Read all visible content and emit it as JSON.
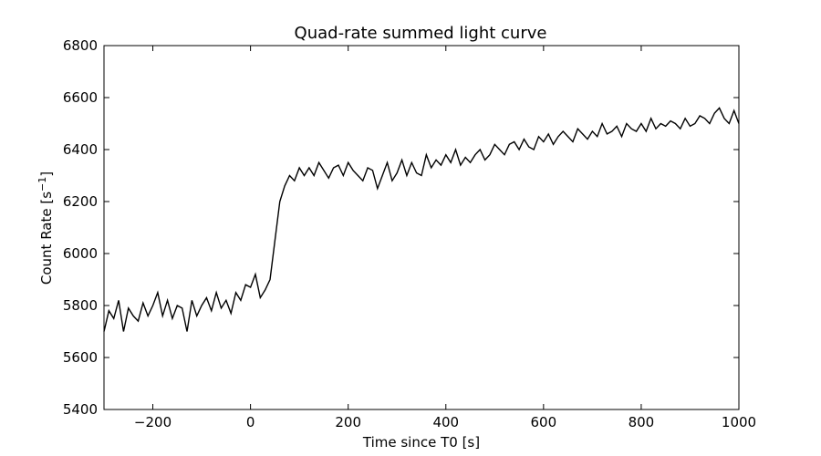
{
  "chart_data": {
    "type": "line",
    "title": "Quad-rate summed light curve",
    "xlabel": "Time since T0 [s]",
    "ylabel_main": "Count Rate [s",
    "ylabel_sup": "−1",
    "ylabel_end": "]",
    "xlim": [
      -300,
      1000
    ],
    "ylim": [
      5400,
      6800
    ],
    "xticks": [
      -200,
      0,
      200,
      400,
      600,
      800,
      1000
    ],
    "xtick_labels": [
      "−200",
      "0",
      "200",
      "400",
      "600",
      "800",
      "1000"
    ],
    "yticks": [
      5400,
      5600,
      5800,
      6000,
      6200,
      6400,
      6600,
      6800
    ],
    "ytick_labels": [
      "5400",
      "5600",
      "5800",
      "6000",
      "6200",
      "6400",
      "6600",
      "6800"
    ],
    "grid": false,
    "series": [
      {
        "color": "#000000",
        "x": [
          -300,
          -290,
          -280,
          -270,
          -260,
          -250,
          -240,
          -230,
          -220,
          -210,
          -200,
          -190,
          -180,
          -170,
          -160,
          -150,
          -140,
          -130,
          -120,
          -110,
          -100,
          -90,
          -80,
          -70,
          -60,
          -50,
          -40,
          -30,
          -20,
          -10,
          0,
          10,
          20,
          30,
          40,
          50,
          60,
          70,
          80,
          90,
          100,
          110,
          120,
          130,
          140,
          150,
          160,
          170,
          180,
          190,
          200,
          210,
          220,
          230,
          240,
          250,
          260,
          270,
          280,
          290,
          300,
          310,
          320,
          330,
          340,
          350,
          360,
          370,
          380,
          390,
          400,
          410,
          420,
          430,
          440,
          450,
          460,
          470,
          480,
          490,
          500,
          510,
          520,
          530,
          540,
          550,
          560,
          570,
          580,
          590,
          600,
          610,
          620,
          630,
          640,
          650,
          660,
          670,
          680,
          690,
          700,
          710,
          720,
          730,
          740,
          750,
          760,
          770,
          780,
          790,
          800,
          810,
          820,
          830,
          840,
          850,
          860,
          870,
          880,
          890,
          900,
          910,
          920,
          930,
          940,
          950,
          960,
          970,
          980,
          990,
          1000
        ],
        "y": [
          5700,
          5780,
          5750,
          5820,
          5700,
          5790,
          5760,
          5740,
          5810,
          5760,
          5800,
          5850,
          5760,
          5820,
          5750,
          5800,
          5790,
          5700,
          5820,
          5760,
          5800,
          5830,
          5780,
          5850,
          5790,
          5820,
          5770,
          5850,
          5820,
          5880,
          5870,
          5920,
          5830,
          5860,
          5900,
          6050,
          6200,
          6260,
          6300,
          6280,
          6330,
          6300,
          6330,
          6300,
          6350,
          6320,
          6290,
          6330,
          6340,
          6300,
          6350,
          6320,
          6300,
          6280,
          6330,
          6320,
          6250,
          6300,
          6350,
          6280,
          6310,
          6360,
          6300,
          6350,
          6310,
          6300,
          6380,
          6330,
          6360,
          6340,
          6380,
          6350,
          6400,
          6340,
          6370,
          6350,
          6380,
          6400,
          6360,
          6380,
          6420,
          6400,
          6380,
          6420,
          6430,
          6400,
          6440,
          6410,
          6400,
          6450,
          6430,
          6460,
          6420,
          6450,
          6470,
          6450,
          6430,
          6480,
          6460,
          6440,
          6470,
          6450,
          6500,
          6460,
          6470,
          6490,
          6450,
          6500,
          6480,
          6470,
          6500,
          6470,
          6520,
          6480,
          6500,
          6490,
          6510,
          6500,
          6480,
          6520,
          6490,
          6500,
          6530,
          6520,
          6500,
          6540,
          6560,
          6520,
          6500,
          6550,
          6500
        ]
      }
    ]
  }
}
